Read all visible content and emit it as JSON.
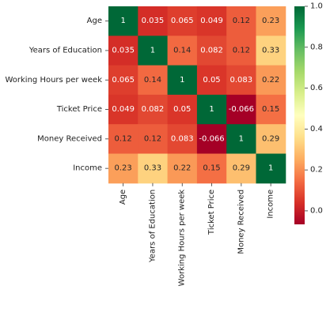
{
  "chart_data": {
    "type": "heatmap",
    "title": "",
    "xlabel": "",
    "ylabel": "",
    "rows": [
      "Age",
      "Years of Education",
      "Working Hours per week",
      "Ticket Price",
      "Money Received",
      "Income"
    ],
    "columns": [
      "Age",
      "Years of Education",
      "Working Hours per week",
      "Ticket Price",
      "Money Received",
      "Income"
    ],
    "values": [
      [
        1,
        0.035,
        0.065,
        0.049,
        0.12,
        0.23
      ],
      [
        0.035,
        1,
        0.14,
        0.082,
        0.12,
        0.33
      ],
      [
        0.065,
        0.14,
        1,
        0.05,
        0.083,
        0.22
      ],
      [
        0.049,
        0.082,
        0.05,
        1,
        -0.066,
        0.15
      ],
      [
        0.12,
        0.12,
        0.083,
        -0.066,
        1,
        0.29
      ],
      [
        0.23,
        0.33,
        0.22,
        0.15,
        0.29,
        1
      ]
    ],
    "annotations": [
      [
        "1",
        "0.035",
        "0.065",
        "0.049",
        "0.12",
        "0.23"
      ],
      [
        "0.035",
        "1",
        "0.14",
        "0.082",
        "0.12",
        "0.33"
      ],
      [
        "0.065",
        "0.14",
        "1",
        "0.05",
        "0.083",
        "0.22"
      ],
      [
        "0.049",
        "0.082",
        "0.05",
        "1",
        "-0.066",
        "0.15"
      ],
      [
        "0.12",
        "0.12",
        "0.083",
        "-0.066",
        "1",
        "0.29"
      ],
      [
        "0.23",
        "0.33",
        "0.22",
        "0.15",
        "0.29",
        "1"
      ]
    ],
    "colormap": "RdYlGn",
    "vmin": -0.066,
    "vmax": 1,
    "colorbar": {
      "ticks": [
        0.0,
        0.2,
        0.4,
        0.6,
        0.8,
        1.0
      ],
      "tick_labels": [
        "0.0",
        "0.2",
        "0.4",
        "0.6",
        "0.8",
        "1.0"
      ]
    }
  }
}
